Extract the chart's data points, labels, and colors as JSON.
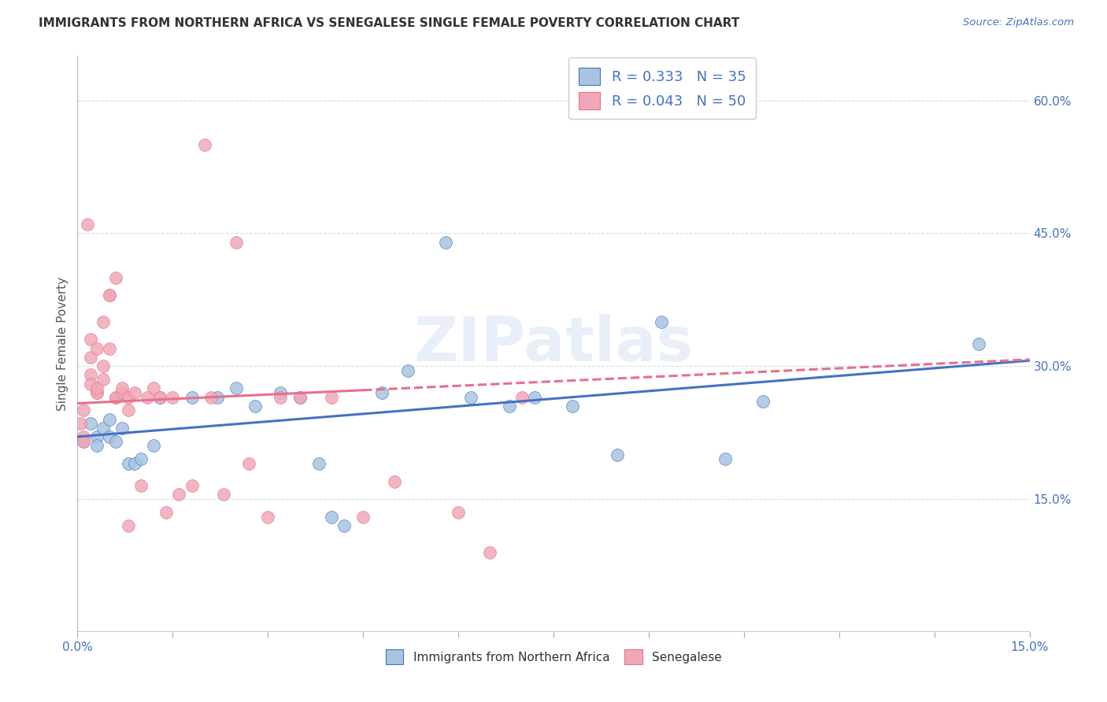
{
  "title": "IMMIGRANTS FROM NORTHERN AFRICA VS SENEGALESE SINGLE FEMALE POVERTY CORRELATION CHART",
  "source": "Source: ZipAtlas.com",
  "ylabel": "Single Female Poverty",
  "blue_color": "#a8c4e0",
  "pink_color": "#f0a8b8",
  "blue_line_color": "#4472c4",
  "pink_line_color": "#e8708a",
  "watermark": "ZIPatlas",
  "legend_line1": "R = 0.333   N = 35",
  "legend_line2": "R = 0.043   N = 50",
  "blue_points_x": [
    0.001,
    0.002,
    0.003,
    0.003,
    0.004,
    0.005,
    0.005,
    0.006,
    0.007,
    0.008,
    0.009,
    0.01,
    0.012,
    0.013,
    0.018,
    0.022,
    0.025,
    0.028,
    0.032,
    0.035,
    0.038,
    0.04,
    0.042,
    0.048,
    0.052,
    0.058,
    0.062,
    0.068,
    0.072,
    0.078,
    0.085,
    0.092,
    0.102,
    0.108,
    0.142
  ],
  "blue_points_y": [
    0.215,
    0.235,
    0.22,
    0.21,
    0.23,
    0.24,
    0.22,
    0.215,
    0.23,
    0.19,
    0.19,
    0.195,
    0.21,
    0.265,
    0.265,
    0.265,
    0.275,
    0.255,
    0.27,
    0.265,
    0.19,
    0.13,
    0.12,
    0.27,
    0.295,
    0.44,
    0.265,
    0.255,
    0.265,
    0.255,
    0.2,
    0.35,
    0.195,
    0.26,
    0.325
  ],
  "pink_points_x": [
    0.0005,
    0.001,
    0.001,
    0.001,
    0.0015,
    0.002,
    0.002,
    0.002,
    0.002,
    0.003,
    0.003,
    0.003,
    0.003,
    0.004,
    0.004,
    0.004,
    0.005,
    0.005,
    0.005,
    0.006,
    0.006,
    0.006,
    0.007,
    0.007,
    0.008,
    0.008,
    0.009,
    0.01,
    0.011,
    0.012,
    0.013,
    0.014,
    0.015,
    0.016,
    0.018,
    0.02,
    0.021,
    0.023,
    0.025,
    0.027,
    0.03,
    0.032,
    0.035,
    0.04,
    0.045,
    0.05,
    0.06,
    0.065,
    0.07,
    0.008
  ],
  "pink_points_y": [
    0.235,
    0.22,
    0.25,
    0.215,
    0.46,
    0.31,
    0.33,
    0.29,
    0.28,
    0.32,
    0.27,
    0.27,
    0.275,
    0.35,
    0.3,
    0.285,
    0.38,
    0.38,
    0.32,
    0.4,
    0.265,
    0.265,
    0.27,
    0.275,
    0.265,
    0.25,
    0.27,
    0.165,
    0.265,
    0.275,
    0.265,
    0.135,
    0.265,
    0.155,
    0.165,
    0.55,
    0.265,
    0.155,
    0.44,
    0.19,
    0.13,
    0.265,
    0.265,
    0.265,
    0.13,
    0.17,
    0.135,
    0.09,
    0.265,
    0.12
  ],
  "xlim": [
    0,
    0.15
  ],
  "ylim": [
    0.0,
    0.65
  ],
  "y_ticks": [
    0.15,
    0.3,
    0.45,
    0.6
  ],
  "y_tick_labels": [
    "15.0%",
    "30.0%",
    "45.0%",
    "60.0%"
  ],
  "x_minor_ticks": [
    0.0,
    0.015,
    0.03,
    0.045,
    0.06,
    0.075,
    0.09,
    0.105,
    0.12,
    0.135,
    0.15
  ]
}
